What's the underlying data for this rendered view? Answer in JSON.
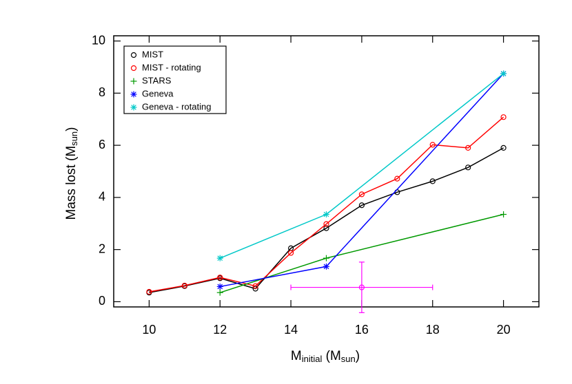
{
  "chart_data": {
    "type": "line",
    "xlabel": [
      "M",
      "initial",
      " (M",
      "sun",
      ")"
    ],
    "ylabel": [
      "Mass lost (M",
      "sun",
      ")"
    ],
    "xlim": [
      9,
      21
    ],
    "ylim": [
      -0.2,
      10.2
    ],
    "xticks": [
      10,
      12,
      14,
      16,
      18,
      20
    ],
    "yticks": [
      0,
      2,
      4,
      6,
      8,
      10
    ],
    "legend": "upper left",
    "series": [
      {
        "name": "MIST",
        "color": "#000000",
        "marker": "circle",
        "x": [
          10,
          11,
          12,
          13,
          14,
          15,
          16,
          17,
          18,
          19,
          20
        ],
        "values": [
          0.35,
          0.6,
          0.9,
          0.5,
          2.05,
          2.82,
          3.7,
          4.2,
          4.62,
          5.15,
          5.9
        ]
      },
      {
        "name": "MIST - rotating",
        "color": "#ff0000",
        "marker": "circle",
        "x": [
          10,
          11,
          12,
          13,
          14,
          15,
          16,
          17,
          18,
          19,
          20
        ],
        "values": [
          0.38,
          0.62,
          0.93,
          0.6,
          1.87,
          2.98,
          4.12,
          4.72,
          6.02,
          5.9,
          7.08
        ]
      },
      {
        "name": "STARS",
        "color": "#009900",
        "marker": "plus",
        "x": [
          12,
          15,
          20
        ],
        "values": [
          0.35,
          1.67,
          3.35
        ]
      },
      {
        "name": "Geneva",
        "color": "#0000ff",
        "marker": "asterisk",
        "x": [
          12,
          15,
          20
        ],
        "values": [
          0.58,
          1.35,
          8.75
        ]
      },
      {
        "name": "Geneva - rotating",
        "color": "#00c8c8",
        "marker": "asterisk",
        "x": [
          12,
          15,
          20
        ],
        "values": [
          1.67,
          3.35,
          8.75
        ]
      }
    ],
    "errorbar": {
      "x": 16,
      "y": 0.55,
      "xerr": 2,
      "yerr": 0.97,
      "color": "#ff00ff"
    }
  }
}
